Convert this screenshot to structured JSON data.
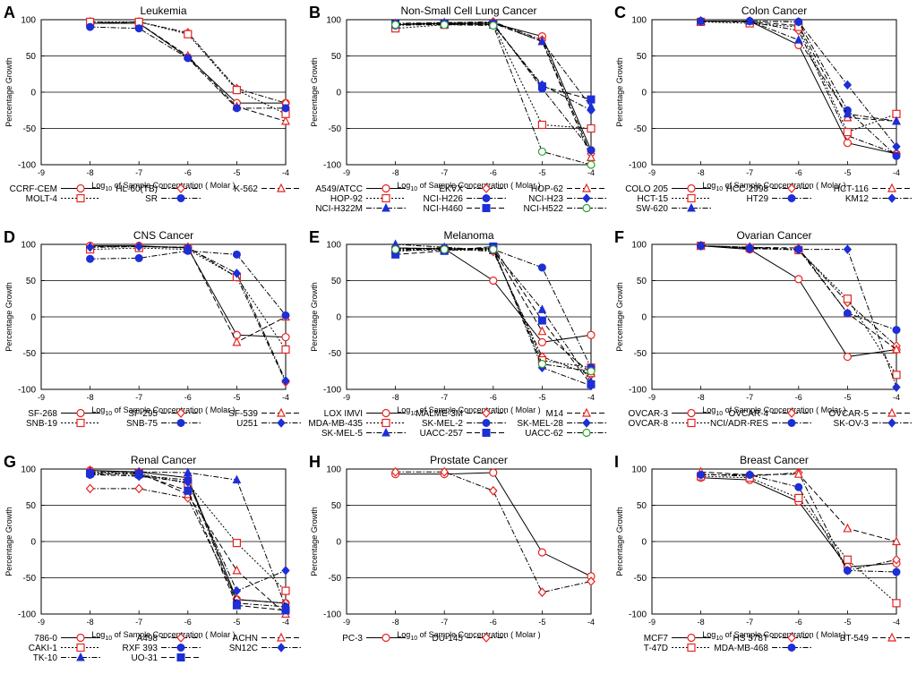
{
  "figure": {
    "xlabel_prefix": "Log",
    "xlabel_sub": "10",
    "xlabel_suffix": " of Sample Concentration ( Molar )",
    "ylabel": "Percentage Growth",
    "x_ticks": [
      -9,
      -8,
      -7,
      -6,
      -5,
      -4
    ],
    "y_ticks": [
      100,
      50,
      0,
      -50,
      -100
    ],
    "colors": {
      "red": "#e8231f",
      "blue": "#1d2fd6",
      "green": "#2ea02e",
      "black": "#000000"
    }
  },
  "chart_data": [
    {
      "letter": "A",
      "title": "Leukemia",
      "type": "line",
      "xlim": [
        -9,
        -4
      ],
      "ylim": [
        -100,
        100
      ],
      "series": [
        {
          "name": "CCRF-CEM",
          "style": "solid",
          "marker": "circle",
          "values": [
            95,
            95,
            48,
            -15,
            -15
          ]
        },
        {
          "name": "HL-60(TB)",
          "style": "dashdot",
          "marker": "diamond",
          "values": [
            95,
            97,
            82,
            5,
            -15
          ]
        },
        {
          "name": "K-562",
          "style": "dashed",
          "marker": "triangle",
          "values": [
            97,
            95,
            50,
            -20,
            -40
          ]
        },
        {
          "name": "MOLT-4",
          "style": "dotted",
          "marker": "square",
          "values": [
            97,
            97,
            80,
            3,
            -30
          ]
        },
        {
          "name": "SR",
          "style": "dashdot",
          "marker": "dot",
          "values": [
            90,
            88,
            47,
            -22,
            -22
          ]
        }
      ]
    },
    {
      "letter": "B",
      "title": "Non-Small Cell Lung Cancer",
      "type": "line",
      "xlim": [
        -9,
        -4
      ],
      "ylim": [
        -100,
        100
      ],
      "series": [
        {
          "name": "A549/ATCC",
          "style": "solid",
          "marker": "circle",
          "values": [
            93,
            95,
            95,
            77,
            -80
          ]
        },
        {
          "name": "EKVX",
          "style": "dashdot",
          "marker": "diamond",
          "values": [
            95,
            96,
            97,
            72,
            -85
          ]
        },
        {
          "name": "HOP-62",
          "style": "dashed",
          "marker": "triangle",
          "values": [
            94,
            95,
            96,
            70,
            -90
          ]
        },
        {
          "name": "HOP-92",
          "style": "dotted",
          "marker": "square",
          "values": [
            88,
            93,
            94,
            -45,
            -50
          ]
        },
        {
          "name": "NCI-H226",
          "style": "dashdot",
          "marker": "dot",
          "values": [
            92,
            94,
            95,
            5,
            -80
          ]
        },
        {
          "name": "NCI-H23",
          "style": "dashdot",
          "marker": "diamond-fill",
          "values": [
            93,
            95,
            93,
            10,
            -25
          ]
        },
        {
          "name": "NCI-H322M",
          "style": "dashdot",
          "marker": "triangle-fill",
          "values": [
            93,
            96,
            95,
            70,
            -20
          ]
        },
        {
          "name": "NCI-H460",
          "style": "dashed",
          "marker": "square-fill",
          "values": [
            94,
            94,
            93,
            8,
            -10
          ]
        },
        {
          "name": "NCI-H522",
          "style": "dashdot",
          "marker": "circle-green",
          "values": [
            93,
            93,
            92,
            -82,
            -100
          ]
        }
      ]
    },
    {
      "letter": "C",
      "title": "Colon Cancer",
      "type": "line",
      "xlim": [
        -9,
        -4
      ],
      "ylim": [
        -100,
        100
      ],
      "series": [
        {
          "name": "COLO 205",
          "style": "solid",
          "marker": "circle",
          "values": [
            98,
            98,
            65,
            -70,
            -85
          ]
        },
        {
          "name": "HCC-2998",
          "style": "dashdot",
          "marker": "diamond",
          "values": [
            98,
            97,
            85,
            -60,
            -85
          ]
        },
        {
          "name": "HCT-116",
          "style": "dashed",
          "marker": "triangle",
          "values": [
            98,
            97,
            92,
            -35,
            -40
          ]
        },
        {
          "name": "HCT-15",
          "style": "dotted",
          "marker": "square",
          "values": [
            97,
            95,
            90,
            -55,
            -30
          ]
        },
        {
          "name": "HT29",
          "style": "dashdot",
          "marker": "dot",
          "values": [
            98,
            98,
            97,
            -25,
            -88
          ]
        },
        {
          "name": "KM12",
          "style": "dashdot",
          "marker": "diamond-fill",
          "values": [
            98,
            98,
            97,
            10,
            -75
          ]
        },
        {
          "name": "SW-620",
          "style": "dashdot",
          "marker": "triangle-fill",
          "values": [
            98,
            98,
            72,
            -30,
            -40
          ]
        }
      ]
    },
    {
      "letter": "D",
      "title": "CNS Cancer",
      "type": "line",
      "xlim": [
        -9,
        -4
      ],
      "ylim": [
        -100,
        100
      ],
      "series": [
        {
          "name": "SF-268",
          "style": "solid",
          "marker": "circle",
          "values": [
            98,
            98,
            95,
            -25,
            -28
          ]
        },
        {
          "name": "SF-295",
          "style": "dashdot",
          "marker": "diamond",
          "values": [
            96,
            97,
            96,
            55,
            -90
          ]
        },
        {
          "name": "SF-539",
          "style": "dashed",
          "marker": "triangle",
          "values": [
            97,
            97,
            96,
            -35,
            0
          ]
        },
        {
          "name": "SNB-19",
          "style": "dotted",
          "marker": "square",
          "values": [
            93,
            95,
            93,
            55,
            -45
          ]
        },
        {
          "name": "SNB-75",
          "style": "dashdot",
          "marker": "dot",
          "values": [
            80,
            81,
            91,
            86,
            2
          ]
        },
        {
          "name": "U251",
          "style": "dashdot",
          "marker": "diamond-fill",
          "values": [
            96,
            97,
            95,
            60,
            -88
          ]
        }
      ]
    },
    {
      "letter": "E",
      "title": "Melanoma",
      "type": "line",
      "xlim": [
        -9,
        -4
      ],
      "ylim": [
        -100,
        100
      ],
      "series": [
        {
          "name": "LOX IMVI",
          "style": "solid",
          "marker": "circle",
          "values": [
            95,
            94,
            50,
            -35,
            -25
          ]
        },
        {
          "name": "MALME-3M",
          "style": "dashdot",
          "marker": "diamond",
          "values": [
            94,
            95,
            90,
            -55,
            -80
          ]
        },
        {
          "name": "M14",
          "style": "dashed",
          "marker": "triangle",
          "values": [
            95,
            94,
            94,
            -20,
            -78
          ]
        },
        {
          "name": "MDA-MB-435",
          "style": "dotted",
          "marker": "square",
          "values": [
            92,
            92,
            92,
            -60,
            -70
          ]
        },
        {
          "name": "SK-MEL-2",
          "style": "dashdot",
          "marker": "dot",
          "values": [
            90,
            95,
            93,
            68,
            -70
          ]
        },
        {
          "name": "SK-MEL-28",
          "style": "dashdot",
          "marker": "diamond-fill",
          "values": [
            94,
            93,
            95,
            -70,
            -95
          ]
        },
        {
          "name": "SK-MEL-5",
          "style": "dashdot",
          "marker": "triangle-fill",
          "values": [
            100,
            96,
            92,
            10,
            -90
          ]
        },
        {
          "name": "UACC-257",
          "style": "dashed",
          "marker": "square-fill",
          "values": [
            86,
            91,
            97,
            -5,
            -93
          ]
        },
        {
          "name": "UACC-62",
          "style": "dashdot",
          "marker": "circle-green",
          "values": [
            93,
            93,
            93,
            -65,
            -75
          ]
        }
      ]
    },
    {
      "letter": "F",
      "title": "Ovarian Cancer",
      "type": "line",
      "xlim": [
        -9,
        -4
      ],
      "ylim": [
        -100,
        100
      ],
      "series": [
        {
          "name": "OVCAR-3",
          "style": "solid",
          "marker": "circle",
          "values": [
            98,
            93,
            52,
            -55,
            -45
          ]
        },
        {
          "name": "OVCAR-4",
          "style": "dashdot",
          "marker": "diamond",
          "values": [
            98,
            95,
            93,
            20,
            -40
          ]
        },
        {
          "name": "OVCAR-5",
          "style": "dashed",
          "marker": "triangle",
          "values": [
            98,
            96,
            95,
            5,
            -45
          ]
        },
        {
          "name": "OVCAR-8",
          "style": "dotted",
          "marker": "square",
          "values": [
            98,
            95,
            92,
            25,
            -80
          ]
        },
        {
          "name": "NCI/ADR-RES",
          "style": "dashdot",
          "marker": "dot",
          "values": [
            98,
            94,
            93,
            5,
            -18
          ]
        },
        {
          "name": "SK-OV-3",
          "style": "dashdot",
          "marker": "diamond-fill",
          "values": [
            98,
            96,
            93,
            93,
            -97
          ]
        }
      ]
    },
    {
      "letter": "G",
      "title": "Renal Cancer",
      "type": "line",
      "xlim": [
        -9,
        -4
      ],
      "ylim": [
        -100,
        100
      ],
      "series": [
        {
          "name": "786-0",
          "style": "solid",
          "marker": "circle",
          "values": [
            98,
            96,
            88,
            -80,
            -85
          ]
        },
        {
          "name": "A498",
          "style": "dashdot",
          "marker": "diamond",
          "values": [
            73,
            73,
            60,
            -80,
            -85
          ]
        },
        {
          "name": "ACHN",
          "style": "dashed",
          "marker": "triangle",
          "values": [
            98,
            95,
            65,
            -40,
            -100
          ]
        },
        {
          "name": "CAKI-1",
          "style": "dotted",
          "marker": "square",
          "values": [
            95,
            94,
            80,
            -2,
            -68
          ]
        },
        {
          "name": "RXF 393",
          "style": "dashdot",
          "marker": "dot",
          "values": [
            92,
            91,
            85,
            -85,
            -90
          ]
        },
        {
          "name": "SN12C",
          "style": "dashdot",
          "marker": "diamond-fill",
          "values": [
            93,
            90,
            82,
            -68,
            -40
          ]
        },
        {
          "name": "TK-10",
          "style": "dashdot",
          "marker": "triangle-fill",
          "values": [
            96,
            96,
            95,
            85,
            -90
          ]
        },
        {
          "name": "UO-31",
          "style": "dashed",
          "marker": "square-fill",
          "values": [
            94,
            93,
            70,
            -88,
            -95
          ]
        }
      ]
    },
    {
      "letter": "H",
      "title": "Prostate Cancer",
      "type": "line",
      "xlim": [
        -9,
        -4
      ],
      "ylim": [
        -100,
        100
      ],
      "series": [
        {
          "name": "PC-3",
          "style": "solid",
          "marker": "circle",
          "values": [
            93,
            93,
            95,
            -15,
            -48
          ]
        },
        {
          "name": "DU-145",
          "style": "dashdot",
          "marker": "diamond",
          "values": [
            96,
            96,
            70,
            -70,
            -55
          ]
        }
      ]
    },
    {
      "letter": "I",
      "title": "Breast Cancer",
      "type": "line",
      "xlim": [
        -9,
        -4
      ],
      "ylim": [
        -100,
        100
      ],
      "series": [
        {
          "name": "MCF7",
          "style": "solid",
          "marker": "circle",
          "values": [
            88,
            85,
            55,
            -35,
            -30
          ]
        },
        {
          "name": "HS 578T",
          "style": "dashdot",
          "marker": "diamond",
          "values": [
            93,
            90,
            95,
            -40,
            -25
          ]
        },
        {
          "name": "BT-549",
          "style": "dashed",
          "marker": "triangle",
          "values": [
            96,
            92,
            93,
            18,
            0
          ]
        },
        {
          "name": "T-47D",
          "style": "dotted",
          "marker": "square",
          "values": [
            90,
            88,
            60,
            -25,
            -85
          ]
        },
        {
          "name": "MDA-MB-468",
          "style": "dashdot",
          "marker": "dot",
          "values": [
            92,
            92,
            75,
            -40,
            -42
          ]
        }
      ]
    }
  ]
}
